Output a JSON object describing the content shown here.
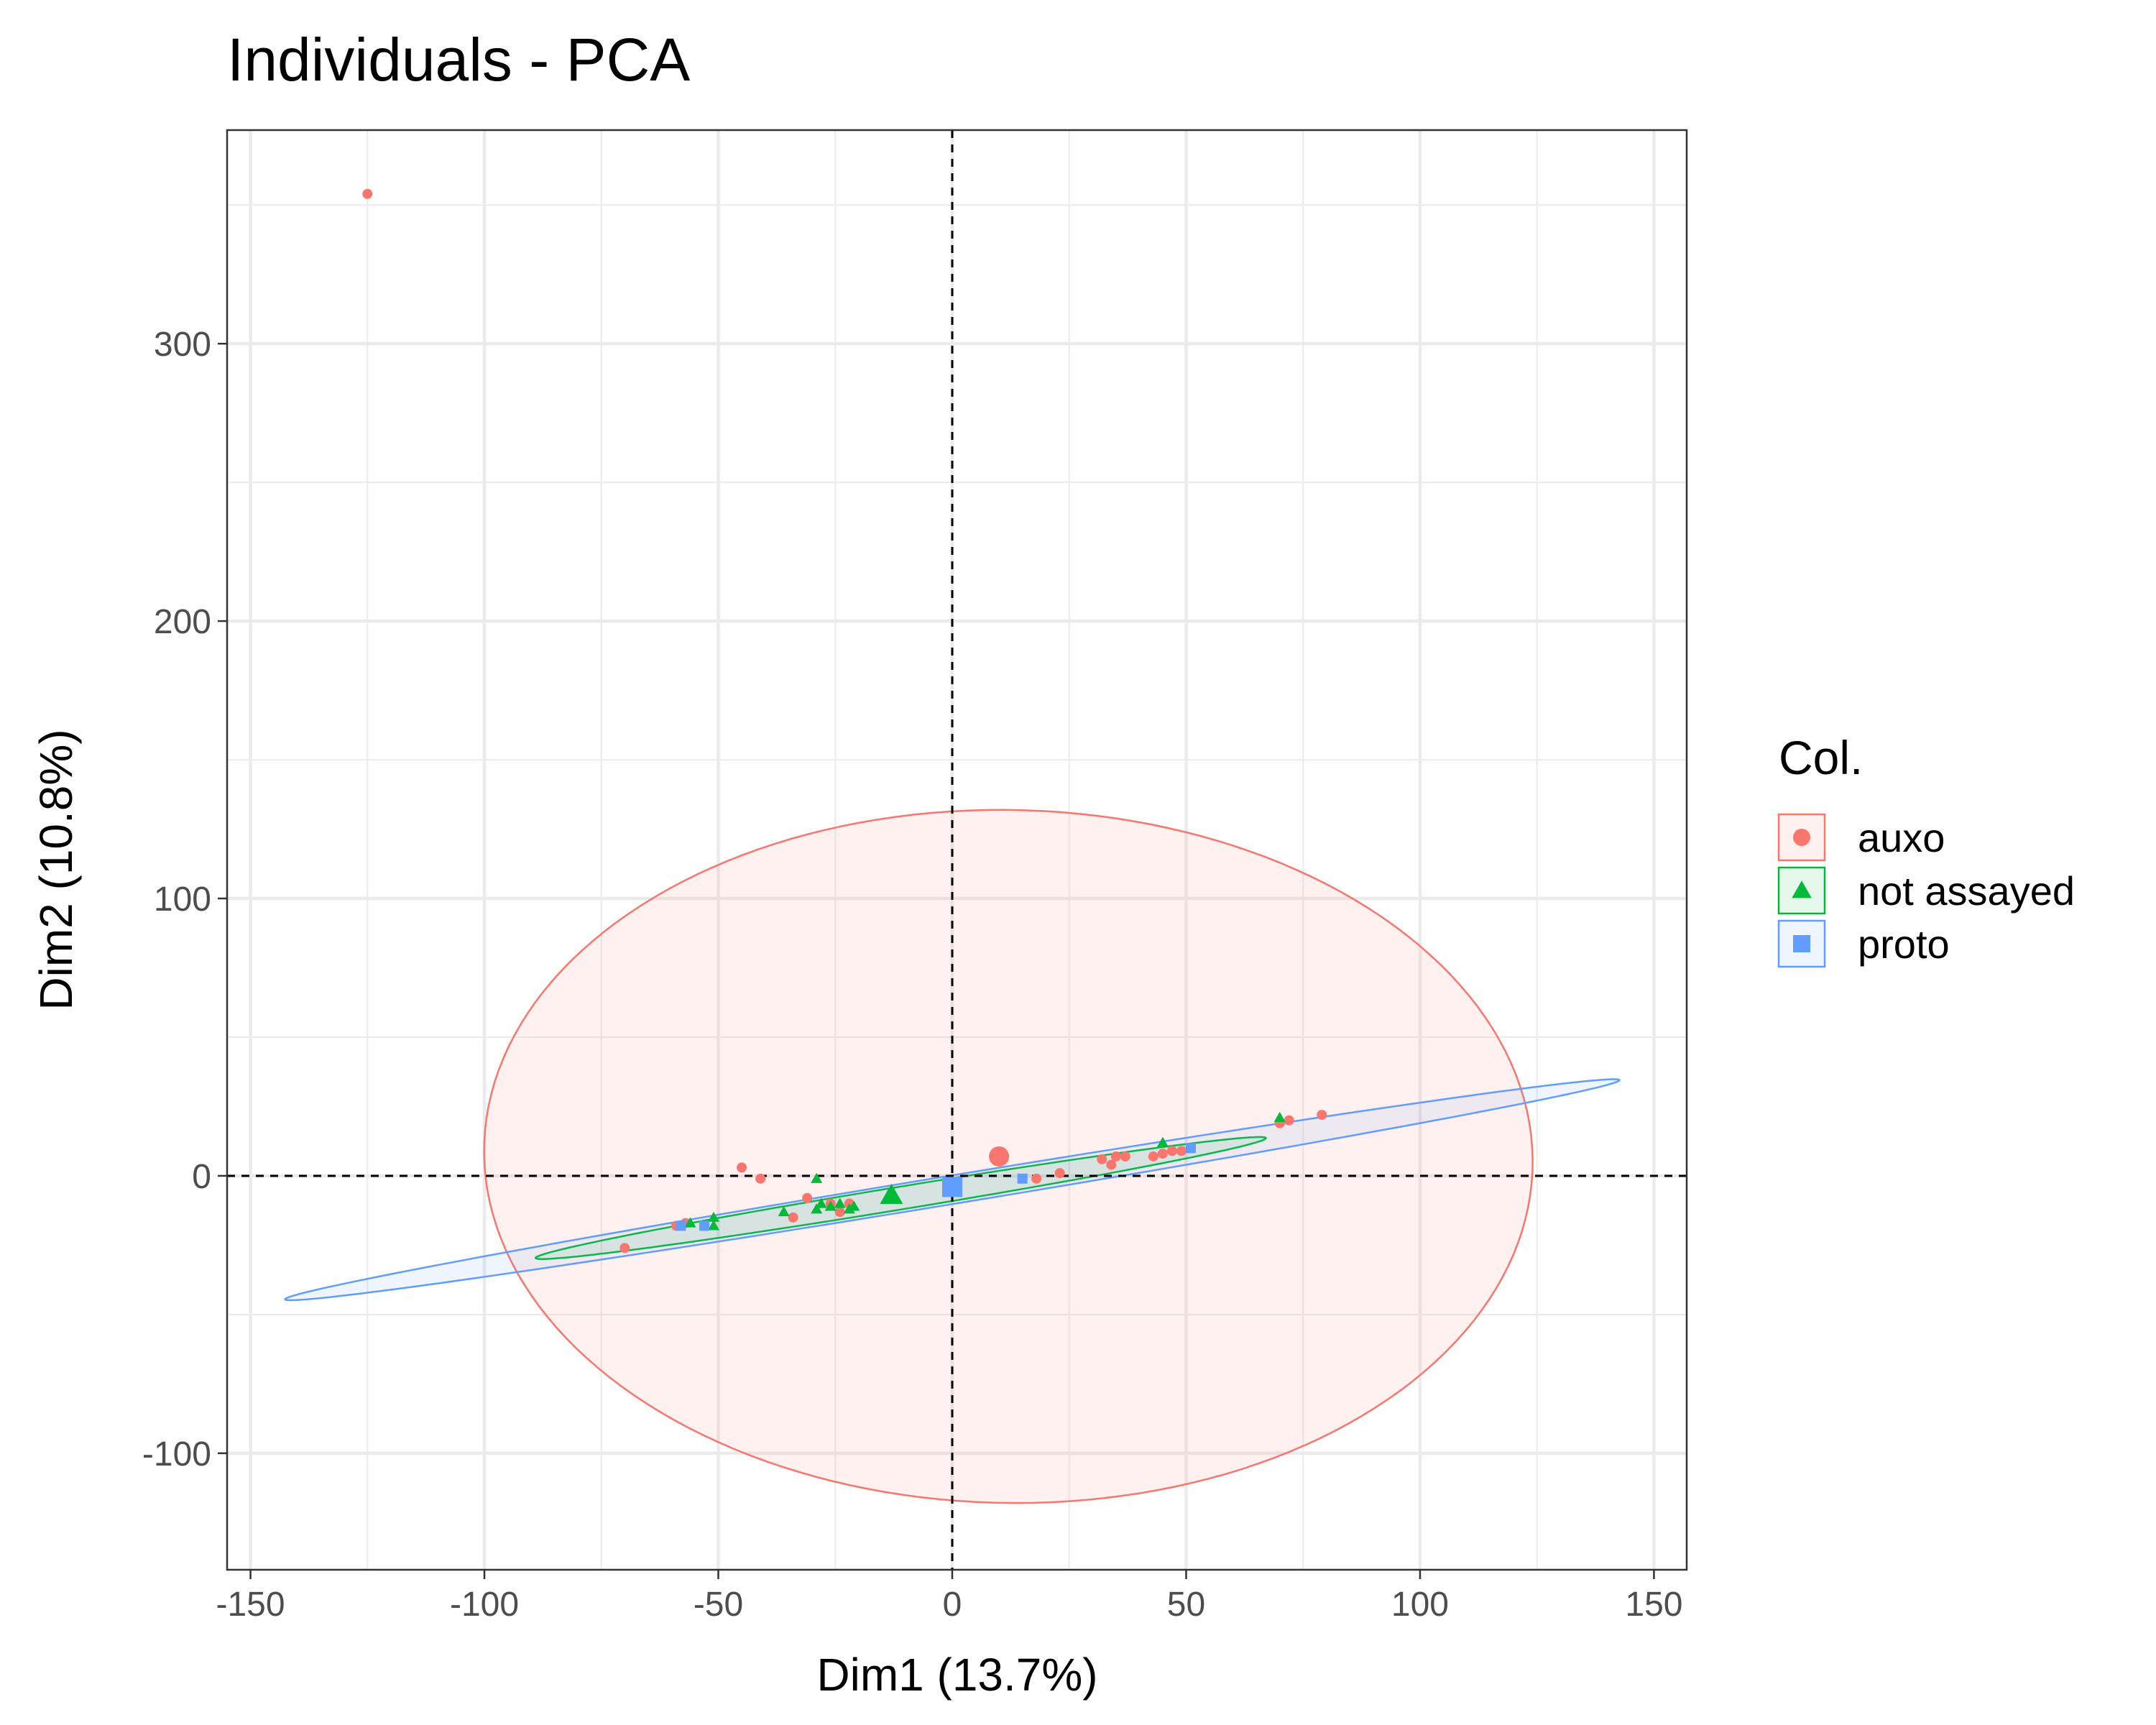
{
  "chart_data": {
    "type": "scatter",
    "title": "Individuals - PCA",
    "xlabel": "Dim1 (13.7%)",
    "ylabel": "Dim2 (10.8%)",
    "xlim": [
      -155,
      157
    ],
    "ylim": [
      -142,
      377
    ],
    "xticks": [
      -150,
      -100,
      -50,
      0,
      50,
      100,
      150
    ],
    "xtick_labels": [
      "-150",
      "-100",
      "-50",
      "0",
      "50",
      "100",
      "150"
    ],
    "yticks": [
      -100,
      0,
      100,
      200,
      300
    ],
    "ytick_labels": [
      "-100",
      "0",
      "100",
      "200",
      "300"
    ],
    "grid": true,
    "reference_lines": {
      "x": 0,
      "y": 0,
      "style": "dashed"
    },
    "legend": {
      "title": "Col.",
      "position": "right"
    },
    "series": [
      {
        "name": "auxo",
        "color": "#F8766D",
        "marker": "circle",
        "points": [
          [
            -125,
            354
          ],
          [
            -70,
            -26
          ],
          [
            -59,
            -18
          ],
          [
            -57,
            -17
          ],
          [
            -45,
            3
          ],
          [
            -41,
            -1
          ],
          [
            -34,
            -15
          ],
          [
            -31,
            -8
          ],
          [
            -26,
            -10
          ],
          [
            -24,
            -13
          ],
          [
            -22,
            -10
          ],
          [
            18,
            -1
          ],
          [
            23,
            1
          ],
          [
            32,
            6
          ],
          [
            34,
            4
          ],
          [
            35,
            7
          ],
          [
            37,
            7
          ],
          [
            43,
            7
          ],
          [
            45,
            8
          ],
          [
            47,
            9
          ],
          [
            49,
            9
          ],
          [
            70,
            19
          ],
          [
            72,
            20
          ],
          [
            79,
            22
          ]
        ],
        "centroid": [
          10,
          7
        ],
        "ellipse": {
          "center": [
            12,
            7
          ],
          "rx": 112,
          "ry": 125,
          "angle_deg": 4
        }
      },
      {
        "name": "not assayed",
        "color": "#00BA38",
        "marker": "triangle",
        "points": [
          [
            -56,
            -17
          ],
          [
            -51,
            -18
          ],
          [
            -51,
            -15
          ],
          [
            -36,
            -13
          ],
          [
            -29,
            -1
          ],
          [
            -29,
            -12
          ],
          [
            -28,
            -10
          ],
          [
            -26,
            -11
          ],
          [
            -24,
            -10
          ],
          [
            -22,
            -12
          ],
          [
            -21,
            -11
          ],
          [
            45,
            12
          ],
          [
            70,
            21
          ]
        ],
        "centroid": [
          -13,
          -7
        ],
        "ellipse": {
          "center": [
            -11,
            -8
          ],
          "rx": 81,
          "ry": 4,
          "angle_deg": 15.5
        }
      },
      {
        "name": "proto",
        "color": "#619CFF",
        "marker": "square",
        "points": [
          [
            -58,
            -18
          ],
          [
            -53,
            -18
          ],
          [
            15,
            -1
          ],
          [
            51,
            10
          ]
        ],
        "centroid": [
          0,
          -4
        ],
        "ellipse": {
          "center": [
            0,
            -5
          ],
          "rx": 148,
          "ry": 5,
          "angle_deg": 15.5
        }
      }
    ]
  }
}
